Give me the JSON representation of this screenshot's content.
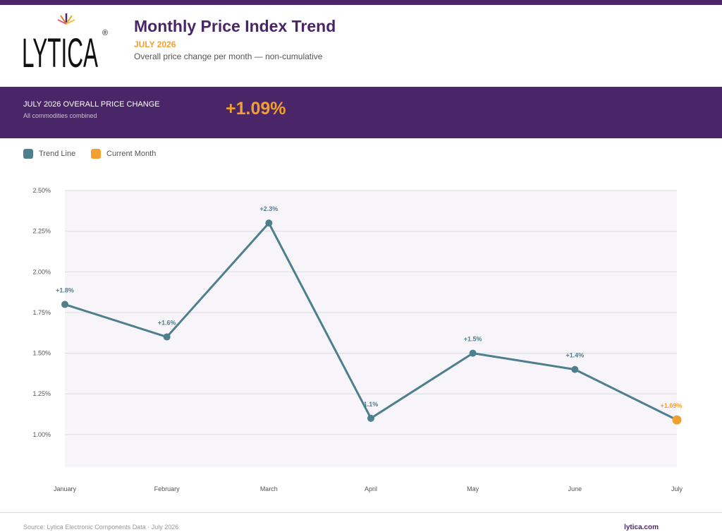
{
  "header": {
    "brand": "LYTICA",
    "title": "Monthly Price Index Trend",
    "subtitle": "JULY 2026",
    "description": "Overall price change per month — non-cumulative"
  },
  "banner": {
    "label": "JULY 2026 OVERALL PRICE CHANGE",
    "sublabel": "All commodities combined",
    "value": "+1.09%"
  },
  "legend": {
    "trend": "Trend Line",
    "current": "Current Month"
  },
  "colors": {
    "brand": "#4a2669",
    "trend": "#4e7f8c",
    "current": "#f0a030",
    "plot_bg": "#f7f4fa"
  },
  "chart_data": {
    "type": "line",
    "categories": [
      "January",
      "February",
      "March",
      "April",
      "May",
      "June",
      "July"
    ],
    "values": [
      1.8,
      1.6,
      2.3,
      1.1,
      1.5,
      1.4,
      1.09
    ],
    "data_labels": [
      "+1.8%",
      "+1.6%",
      "+2.3%",
      "1.1%",
      "+1.5%",
      "+1.4%",
      "+1.09%"
    ],
    "highlight_index": 6,
    "y_ticks": [
      "2.50%",
      "2.25%",
      "2.00%",
      "1.75%",
      "1.50%",
      "1.25%",
      "1.00%"
    ],
    "ylim": [
      0.8,
      2.5
    ],
    "grid": true
  },
  "footer": {
    "source": "Source: Lytica Electronic Components Data · July 2026",
    "site": "lytica.com"
  }
}
